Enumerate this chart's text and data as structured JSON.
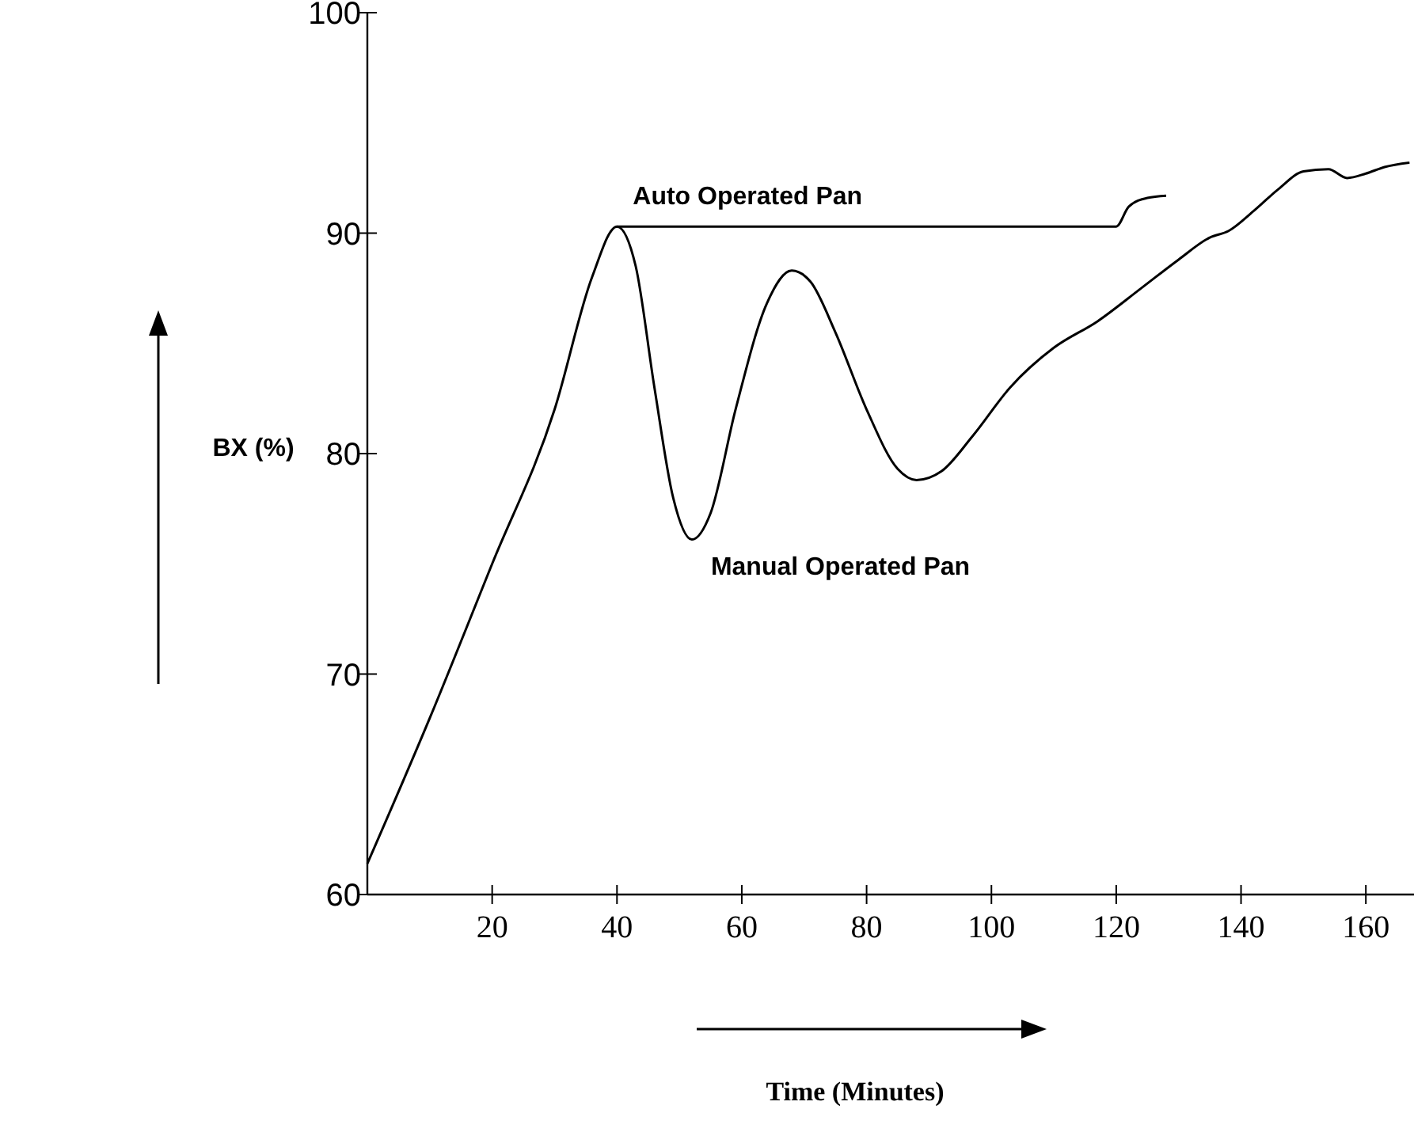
{
  "chart_data": {
    "type": "line",
    "xlabel": "Time (Minutes)",
    "ylabel": "BX (%)",
    "xlim": [
      0,
      170
    ],
    "ylim": [
      60,
      100
    ],
    "xticks": [
      20,
      40,
      60,
      80,
      100,
      120,
      140,
      160
    ],
    "yticks": [
      60,
      70,
      80,
      90,
      100
    ],
    "grid": false,
    "marker": "none",
    "line_style": "solid",
    "series": [
      {
        "name": "Auto Operated Pan",
        "color": "#000000",
        "x": [
          40,
          60,
          80,
          100,
          120,
          122,
          125,
          128
        ],
        "values": [
          90.3,
          90.3,
          90.3,
          90.3,
          90.3,
          91.2,
          91.6,
          91.7
        ]
      },
      {
        "name": "Manual Operated Pan",
        "color": "#000000",
        "x": [
          0,
          10,
          20,
          30,
          36,
          40,
          43,
          46,
          49,
          52,
          55,
          59,
          64,
          68,
          71,
          75,
          80,
          85,
          88,
          92,
          97,
          103,
          110,
          117,
          124,
          130,
          135,
          138,
          142,
          146,
          150,
          154,
          157,
          160,
          163,
          167
        ],
        "values": [
          61.4,
          68,
          75,
          82,
          88,
          90.3,
          88.5,
          83,
          78,
          76.1,
          77.3,
          82,
          86.8,
          88.3,
          87.8,
          85.5,
          82,
          79.3,
          78.8,
          79.2,
          80.8,
          83,
          84.8,
          86,
          87.5,
          88.8,
          89.8,
          90.1,
          91,
          92,
          92.8,
          92.9,
          92.5,
          92.7,
          93,
          93.2
        ]
      }
    ]
  }
}
